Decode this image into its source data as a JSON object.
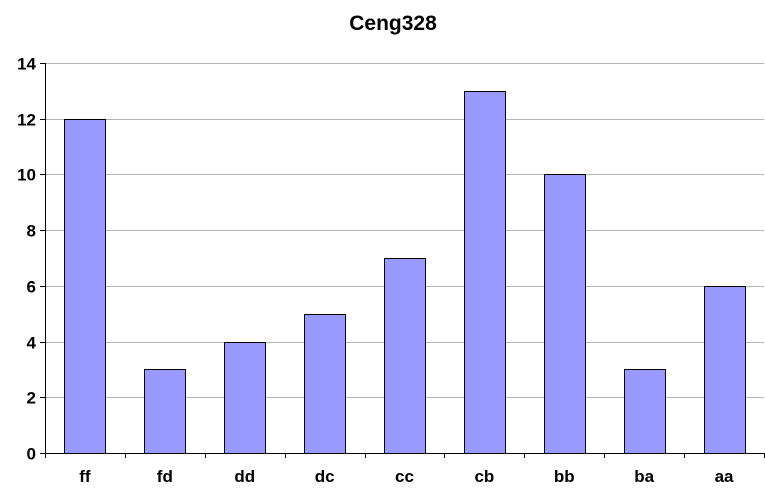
{
  "chart_data": {
    "type": "bar",
    "title": "Ceng328",
    "xlabel": "",
    "ylabel": "",
    "categories": [
      "ff",
      "fd",
      "dd",
      "dc",
      "cc",
      "cb",
      "bb",
      "ba",
      "aa"
    ],
    "values": [
      12,
      3,
      4,
      5,
      7,
      13,
      10,
      3,
      6
    ],
    "ylim": [
      0,
      14
    ],
    "yticks": [
      0,
      2,
      4,
      6,
      8,
      10,
      12,
      14
    ],
    "grid": true,
    "legend": "none",
    "colors": {
      "bar_fill": "#9999ff",
      "bar_stroke": "#000000",
      "grid": "#b3b3b3",
      "background": "#ffffff"
    }
  }
}
